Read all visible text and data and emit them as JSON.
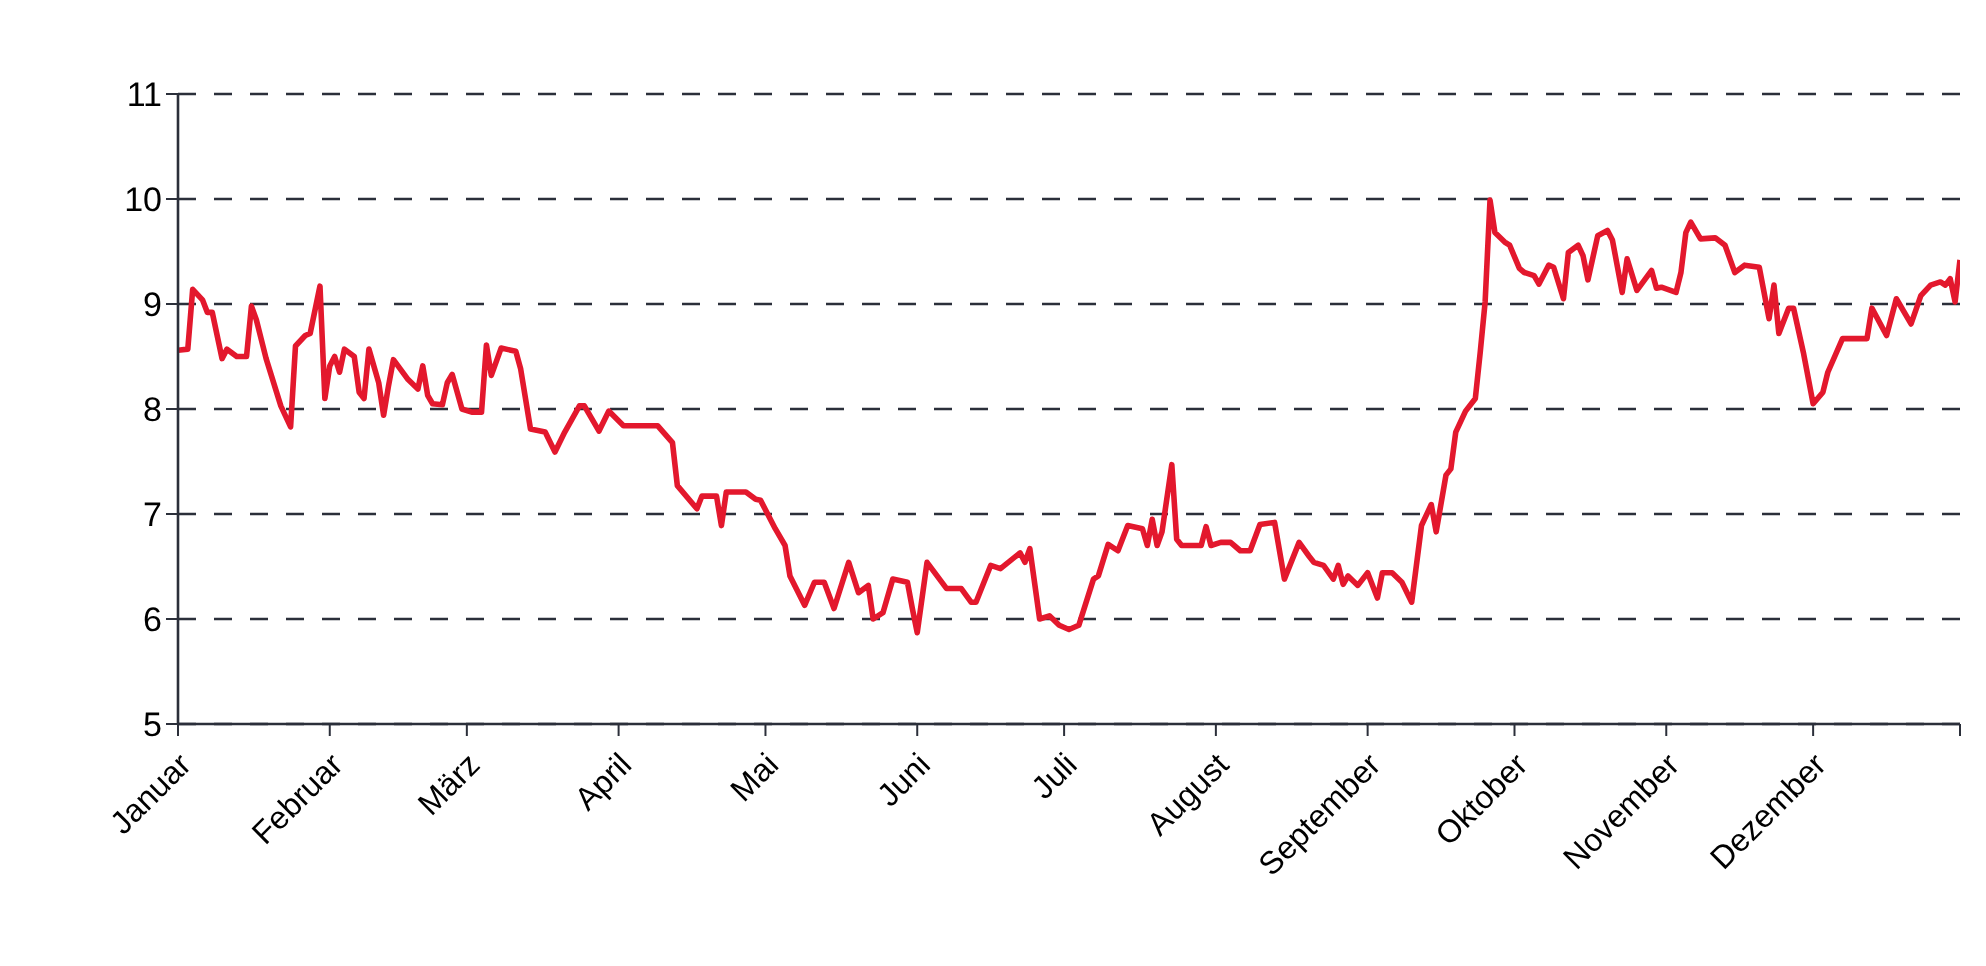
{
  "chart_data": {
    "type": "line",
    "x": [
      "--01-01",
      "--01-03",
      "--01-04",
      "--01-06",
      "--01-07",
      "--01-08",
      "--01-10",
      "--01-11",
      "--01-13",
      "--01-15",
      "--01-16",
      "--01-17",
      "--01-19",
      "--01-22",
      "--01-24",
      "--01-25",
      "--01-27",
      "--01-28",
      "--01-30",
      "--01-31",
      "--02-01",
      "--02-02",
      "--02-03",
      "--02-04",
      "--02-06",
      "--02-07",
      "--02-08",
      "--02-09",
      "--02-11",
      "--02-12",
      "--02-13",
      "--02-14",
      "--02-17",
      "--02-19",
      "--02-20",
      "--02-21",
      "--02-22",
      "--02-24",
      "--02-25",
      "--02-26",
      "--02-28",
      "--03-02",
      "--03-04",
      "--03-05",
      "--03-06",
      "--03-08",
      "--03-11",
      "--03-12",
      "--03-14",
      "--03-17",
      "--03-19",
      "--03-21",
      "--03-24",
      "--03-25",
      "--03-28",
      "--03-30",
      "--04-02",
      "--04-09",
      "--04-12",
      "--04-13",
      "--04-17",
      "--04-18",
      "--04-21",
      "--04-22",
      "--04-23",
      "--04-27",
      "--04-29",
      "--04-30",
      "--05-03",
      "--05-05",
      "--05-06",
      "--05-09",
      "--05-11",
      "--05-13",
      "--05-15",
      "--05-18",
      "--05-20",
      "--05-22",
      "--05-23",
      "--05-25",
      "--05-27",
      "--05-30",
      "--05-31",
      "--06-01",
      "--06-03",
      "--06-07",
      "--06-10",
      "--06-12",
      "--06-13",
      "--06-16",
      "--06-18",
      "--06-22",
      "--06-23",
      "--06-24",
      "--06-26",
      "--06-28",
      "--06-30",
      "--07-02",
      "--07-04",
      "--07-07",
      "--07-08",
      "--07-10",
      "--07-12",
      "--07-14",
      "--07-17",
      "--07-18",
      "--07-19",
      "--07-20",
      "--07-21",
      "--07-23",
      "--07-24",
      "--07-25",
      "--07-29",
      "--07-30",
      "--07-31",
      "--08-02",
      "--08-04",
      "--08-06",
      "--08-08",
      "--08-10",
      "--08-13",
      "--08-15",
      "--08-18",
      "--08-20",
      "--08-21",
      "--08-23",
      "--08-25",
      "--08-26",
      "--08-27",
      "--08-28",
      "--08-30",
      "--09-01",
      "--09-03",
      "--09-04",
      "--09-06",
      "--09-08",
      "--09-10",
      "--09-12",
      "--09-14",
      "--09-15",
      "--09-17",
      "--09-18",
      "--09-19",
      "--09-21",
      "--09-23",
      "--09-24",
      "--09-25",
      "--09-26",
      "--09-27",
      "--09-29",
      "--09-30",
      "--10-02",
      "--10-03",
      "--10-05",
      "--10-06",
      "--10-08",
      "--10-09",
      "--10-11",
      "--10-12",
      "--10-14",
      "--10-15",
      "--10-16",
      "--10-18",
      "--10-20",
      "--10-21",
      "--10-23",
      "--10-24",
      "--10-26",
      "--10-29",
      "--10-30",
      "--10-31",
      "--11-03",
      "--11-04",
      "--11-05",
      "--11-06",
      "--11-08",
      "--11-11",
      "--11-13",
      "--11-15",
      "--11-17",
      "--11-20",
      "--11-22",
      "--11-23",
      "--11-24",
      "--11-26",
      "--11-27",
      "--11-29",
      "--12-01",
      "--12-03",
      "--12-04",
      "--12-07",
      "--12-12",
      "--12-13",
      "--12-16",
      "--12-18",
      "--12-21",
      "--12-23",
      "--12-25",
      "--12-27",
      "--12-28",
      "--12-29",
      "--12-30",
      "--12-31"
    ],
    "series": [
      {
        "color": "#e3182d",
        "values": [
          8.56,
          8.57,
          9.14,
          9.04,
          8.92,
          8.92,
          8.48,
          8.57,
          8.5,
          8.5,
          8.98,
          8.85,
          8.48,
          8.03,
          7.83,
          8.6,
          8.7,
          8.72,
          9.17,
          8.1,
          8.41,
          8.5,
          8.35,
          8.57,
          8.5,
          8.16,
          8.1,
          8.57,
          8.25,
          7.94,
          8.22,
          8.47,
          8.28,
          8.19,
          8.41,
          8.13,
          8.05,
          8.04,
          8.25,
          8.33,
          8.0,
          7.97,
          7.97,
          8.61,
          8.32,
          8.58,
          8.55,
          8.38,
          7.81,
          7.78,
          7.59,
          7.78,
          8.03,
          8.03,
          7.79,
          7.98,
          7.84,
          7.84,
          7.68,
          7.27,
          7.05,
          7.17,
          7.17,
          6.89,
          7.21,
          7.21,
          7.14,
          7.13,
          6.86,
          6.7,
          6.41,
          6.13,
          6.35,
          6.35,
          6.1,
          6.54,
          6.25,
          6.32,
          6.0,
          6.06,
          6.38,
          6.35,
          6.1,
          5.87,
          6.54,
          6.29,
          6.29,
          6.16,
          6.16,
          6.51,
          6.48,
          6.63,
          6.54,
          6.67,
          6.0,
          6.03,
          5.94,
          5.9,
          5.94,
          6.38,
          6.41,
          6.71,
          6.65,
          6.89,
          6.86,
          6.7,
          6.95,
          6.7,
          6.83,
          7.47,
          6.76,
          6.7,
          6.7,
          6.88,
          6.7,
          6.73,
          6.73,
          6.65,
          6.65,
          6.9,
          6.92,
          6.38,
          6.73,
          6.6,
          6.54,
          6.51,
          6.38,
          6.51,
          6.33,
          6.41,
          6.32,
          6.44,
          6.2,
          6.44,
          6.44,
          6.35,
          6.16,
          6.89,
          7.09,
          6.83,
          7.37,
          7.43,
          7.78,
          7.98,
          8.1,
          8.54,
          9.02,
          9.99,
          9.68,
          9.59,
          9.56,
          9.34,
          9.3,
          9.27,
          9.19,
          9.37,
          9.35,
          9.05,
          9.49,
          9.56,
          9.46,
          9.23,
          9.65,
          9.7,
          9.61,
          9.11,
          9.43,
          9.13,
          9.32,
          9.15,
          9.16,
          9.11,
          9.3,
          9.68,
          9.78,
          9.62,
          9.63,
          9.56,
          9.3,
          9.37,
          9.35,
          8.86,
          9.18,
          8.72,
          8.96,
          8.96,
          8.54,
          8.05,
          8.16,
          8.35,
          8.67,
          8.67,
          8.96,
          8.7,
          9.05,
          8.81,
          9.08,
          9.18,
          9.21,
          9.18,
          9.24,
          9.02,
          9.42
        ]
      }
    ],
    "xlim": [
      "--01-01",
      "--12-31"
    ],
    "xticks": [
      {
        "value": "--01-01",
        "label": "Januar"
      },
      {
        "value": "--02-01",
        "label": "Februar"
      },
      {
        "value": "--03-01",
        "label": "März"
      },
      {
        "value": "--04-01",
        "label": "April"
      },
      {
        "value": "--05-01",
        "label": "Mai"
      },
      {
        "value": "--06-01",
        "label": "Juni"
      },
      {
        "value": "--07-01",
        "label": "Juli"
      },
      {
        "value": "--08-01",
        "label": "August"
      },
      {
        "value": "--09-01",
        "label": "September"
      },
      {
        "value": "--10-01",
        "label": "Oktober"
      },
      {
        "value": "--11-01",
        "label": "November"
      },
      {
        "value": "--12-01",
        "label": "Dezember"
      },
      {
        "value": "--12-31",
        "label": null
      }
    ],
    "ylim": [
      5,
      11
    ],
    "yticks": [
      5,
      6,
      7,
      8,
      9,
      10,
      11
    ],
    "grid": "y",
    "legend": false,
    "marker": "none",
    "line_style": "solid"
  }
}
